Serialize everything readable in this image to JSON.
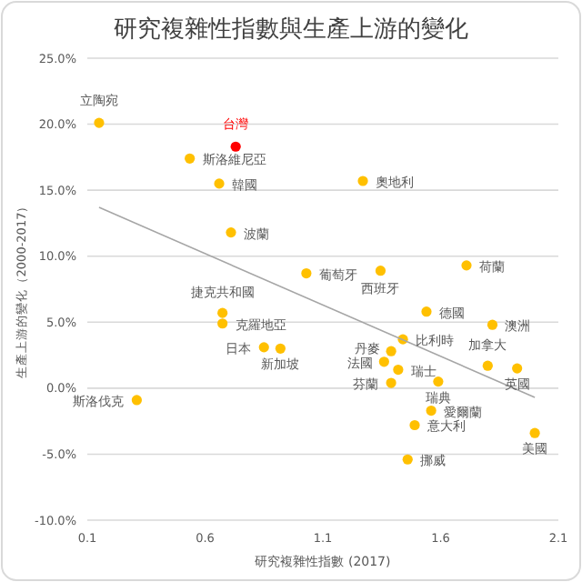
{
  "chart_data": {
    "type": "scatter",
    "title": "研究複雜性指數與生產上游的變化",
    "xlabel": "研究複雜性指數 (2017)",
    "ylabel": "生產上游的變化（2000-2017）",
    "xlim": [
      0.1,
      2.1
    ],
    "xticks": [
      0.1,
      0.6,
      1.1,
      1.6,
      2.1
    ],
    "ylim": [
      -10,
      25
    ],
    "yticks": [
      {
        "value": -10,
        "label": "-10.0%"
      },
      {
        "value": -5,
        "label": "-5.0%"
      },
      {
        "value": 0,
        "label": "0.0%"
      },
      {
        "value": 5,
        "label": "5.0%"
      },
      {
        "value": 10,
        "label": "10.0%"
      },
      {
        "value": 15,
        "label": "15.0%"
      },
      {
        "value": 20,
        "label": "20.0%"
      },
      {
        "value": 25,
        "label": "25.0%"
      }
    ],
    "grid": "y",
    "series": [
      {
        "marker": "circle",
        "color": "#ffc000",
        "x": [
          0.15,
          0.73,
          0.535,
          0.66,
          1.27,
          0.71,
          1.03,
          1.345,
          1.71,
          0.674,
          0.674,
          1.54,
          1.82,
          1.44,
          0.85,
          0.92,
          1.39,
          1.36,
          1.42,
          1.8,
          1.925,
          1.39,
          1.59,
          0.31,
          1.56,
          1.49,
          2.0,
          1.46
        ],
        "values": [
          20.1,
          18.3,
          17.4,
          15.5,
          15.7,
          11.8,
          8.7,
          8.9,
          9.3,
          5.7,
          4.9,
          5.8,
          4.8,
          3.7,
          3.1,
          3.0,
          2.8,
          2.0,
          1.4,
          1.7,
          1.5,
          0.4,
          0.5,
          -0.9,
          -1.7,
          -2.8,
          -3.4,
          -5.4
        ],
        "colors": [
          "#ffc000",
          "#ff0000",
          "#ffc000",
          "#ffc000",
          "#ffc000",
          "#ffc000",
          "#ffc000",
          "#ffc000",
          "#ffc000",
          "#ffc000",
          "#ffc000",
          "#ffc000",
          "#ffc000",
          "#ffc000",
          "#ffc000",
          "#ffc000",
          "#ffc000",
          "#ffc000",
          "#ffc000",
          "#ffc000",
          "#ffc000",
          "#ffc000",
          "#ffc000",
          "#ffc000",
          "#ffc000",
          "#ffc000",
          "#ffc000",
          "#ffc000"
        ]
      },
      {
        "type": "line",
        "color": "#a6a6a6",
        "x": [
          0.15,
          2.0
        ],
        "values": [
          13.7,
          -0.7
        ]
      }
    ],
    "annotations": [
      {
        "text": "立陶宛",
        "x": 0.15,
        "y": 20.1
      },
      {
        "text": "台灣",
        "x": 0.73,
        "y": 18.3
      },
      {
        "text": "斯洛維尼亞",
        "x": 0.535,
        "y": 17.4
      },
      {
        "text": "韓國",
        "x": 0.66,
        "y": 15.5
      },
      {
        "text": "奧地利",
        "x": 1.27,
        "y": 15.7
      },
      {
        "text": "波蘭",
        "x": 0.71,
        "y": 11.8
      },
      {
        "text": "葡萄牙",
        "x": 1.03,
        "y": 8.7
      },
      {
        "text": "西班牙",
        "x": 1.345,
        "y": 8.9
      },
      {
        "text": "荷蘭",
        "x": 1.71,
        "y": 9.3
      },
      {
        "text": "捷克共和國",
        "x": 0.674,
        "y": 5.7
      },
      {
        "text": "克羅地亞",
        "x": 0.674,
        "y": 4.9
      },
      {
        "text": "德國",
        "x": 1.54,
        "y": 5.8
      },
      {
        "text": "澳洲",
        "x": 1.82,
        "y": 4.8
      },
      {
        "text": "比利時",
        "x": 1.44,
        "y": 3.7
      },
      {
        "text": "日本",
        "x": 0.85,
        "y": 3.1
      },
      {
        "text": "新加坡",
        "x": 0.92,
        "y": 3.0
      },
      {
        "text": "丹麥",
        "x": 1.39,
        "y": 2.8
      },
      {
        "text": "法國",
        "x": 1.36,
        "y": 2.0
      },
      {
        "text": "瑞士",
        "x": 1.42,
        "y": 1.4
      },
      {
        "text": "加拿大",
        "x": 1.8,
        "y": 1.7
      },
      {
        "text": "英國",
        "x": 1.925,
        "y": 1.5
      },
      {
        "text": "芬蘭",
        "x": 1.39,
        "y": 0.4
      },
      {
        "text": "瑞典",
        "x": 1.59,
        "y": 0.5
      },
      {
        "text": "斯洛伐克",
        "x": 0.31,
        "y": -0.9
      },
      {
        "text": "愛爾蘭",
        "x": 1.56,
        "y": -1.7
      },
      {
        "text": "意大利",
        "x": 1.49,
        "y": -2.8
      },
      {
        "text": "美國",
        "x": 2.0,
        "y": -3.4
      },
      {
        "text": "挪威",
        "x": 1.46,
        "y": -5.4
      }
    ]
  }
}
